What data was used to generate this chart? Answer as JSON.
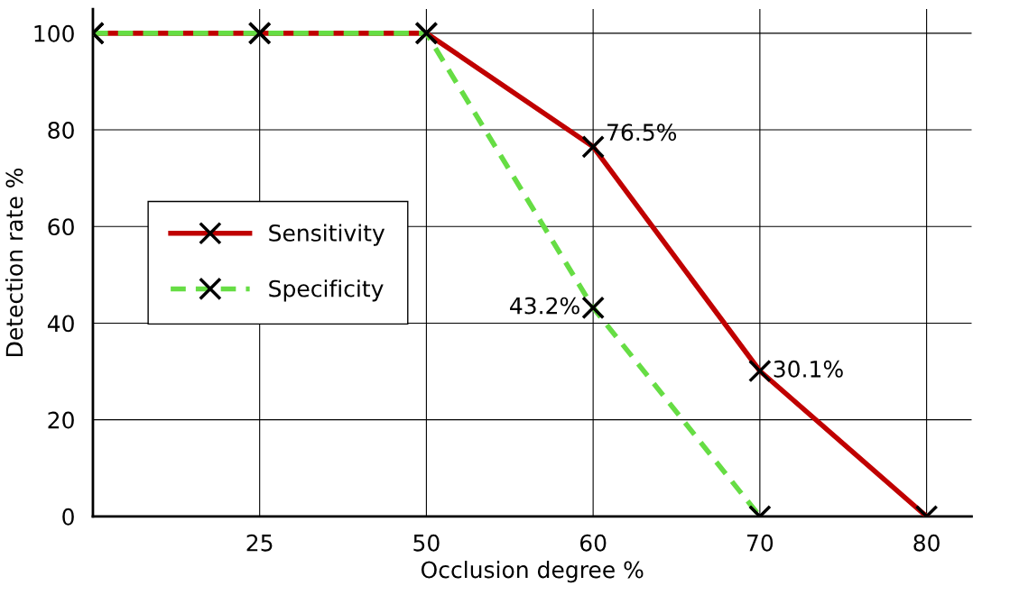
{
  "chart_data": {
    "type": "line",
    "xlabel": "Occlusion degree %",
    "ylabel": "Detection rate %",
    "categories": [
      null,
      "25",
      "50",
      "60",
      "70",
      "80"
    ],
    "series": [
      {
        "name": "Sensitivity",
        "color": "#c00000",
        "line_style": "solid",
        "values": [
          100,
          100,
          100,
          76.5,
          30.1,
          0
        ],
        "value_labels": [
          null,
          null,
          null,
          "76.5%",
          "30.1%",
          null
        ]
      },
      {
        "name": "Specificity",
        "color": "#66dd44",
        "line_style": "dashed",
        "values": [
          100,
          100,
          100,
          43.2,
          0,
          null
        ],
        "value_labels": [
          null,
          null,
          null,
          "43.2%",
          null,
          null
        ]
      }
    ],
    "marker": "cross",
    "ylim": [
      0,
      105
    ],
    "yticks": [
      0,
      20,
      40,
      60,
      80,
      100
    ],
    "grid": true,
    "legend": "left"
  }
}
